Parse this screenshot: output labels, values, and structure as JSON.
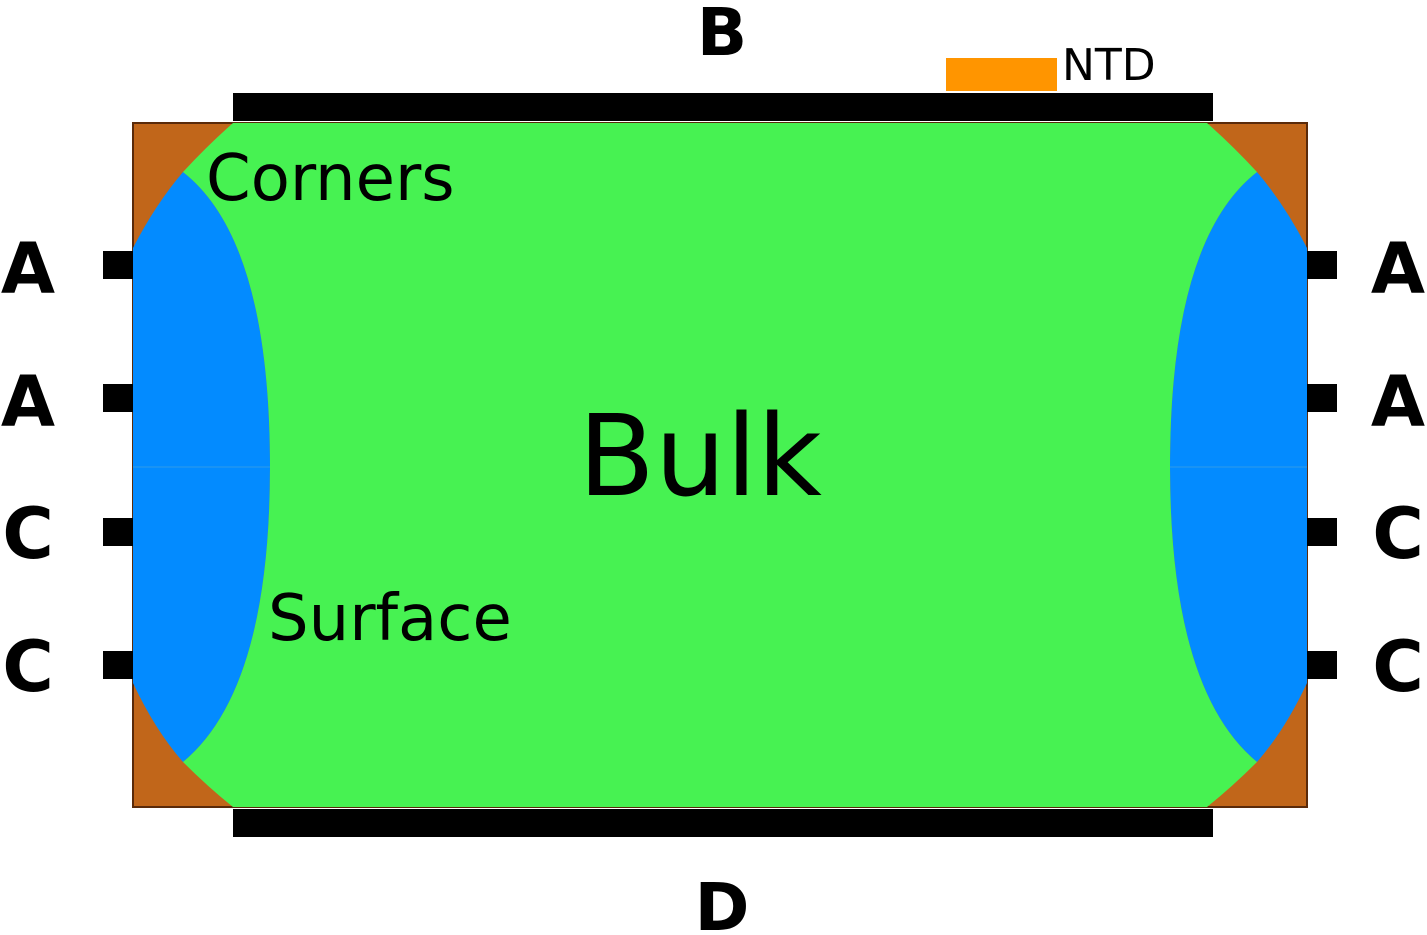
{
  "labels": {
    "top_electrode": "B",
    "bottom_electrode": "D",
    "sensor": "NTD",
    "left_electrodes": [
      "A",
      "A",
      "C",
      "C"
    ],
    "right_electrodes": [
      "A",
      "A",
      "C",
      "C"
    ],
    "corners_region": "Corners",
    "surface_region": "Surface",
    "bulk_region": "Bulk"
  },
  "colors": {
    "bulk": "#47F252",
    "surface": "#038BFF",
    "corners": "#C1661A",
    "electrode": "#000000",
    "sensor": "#FF9500",
    "background": "#FFFFFF"
  }
}
